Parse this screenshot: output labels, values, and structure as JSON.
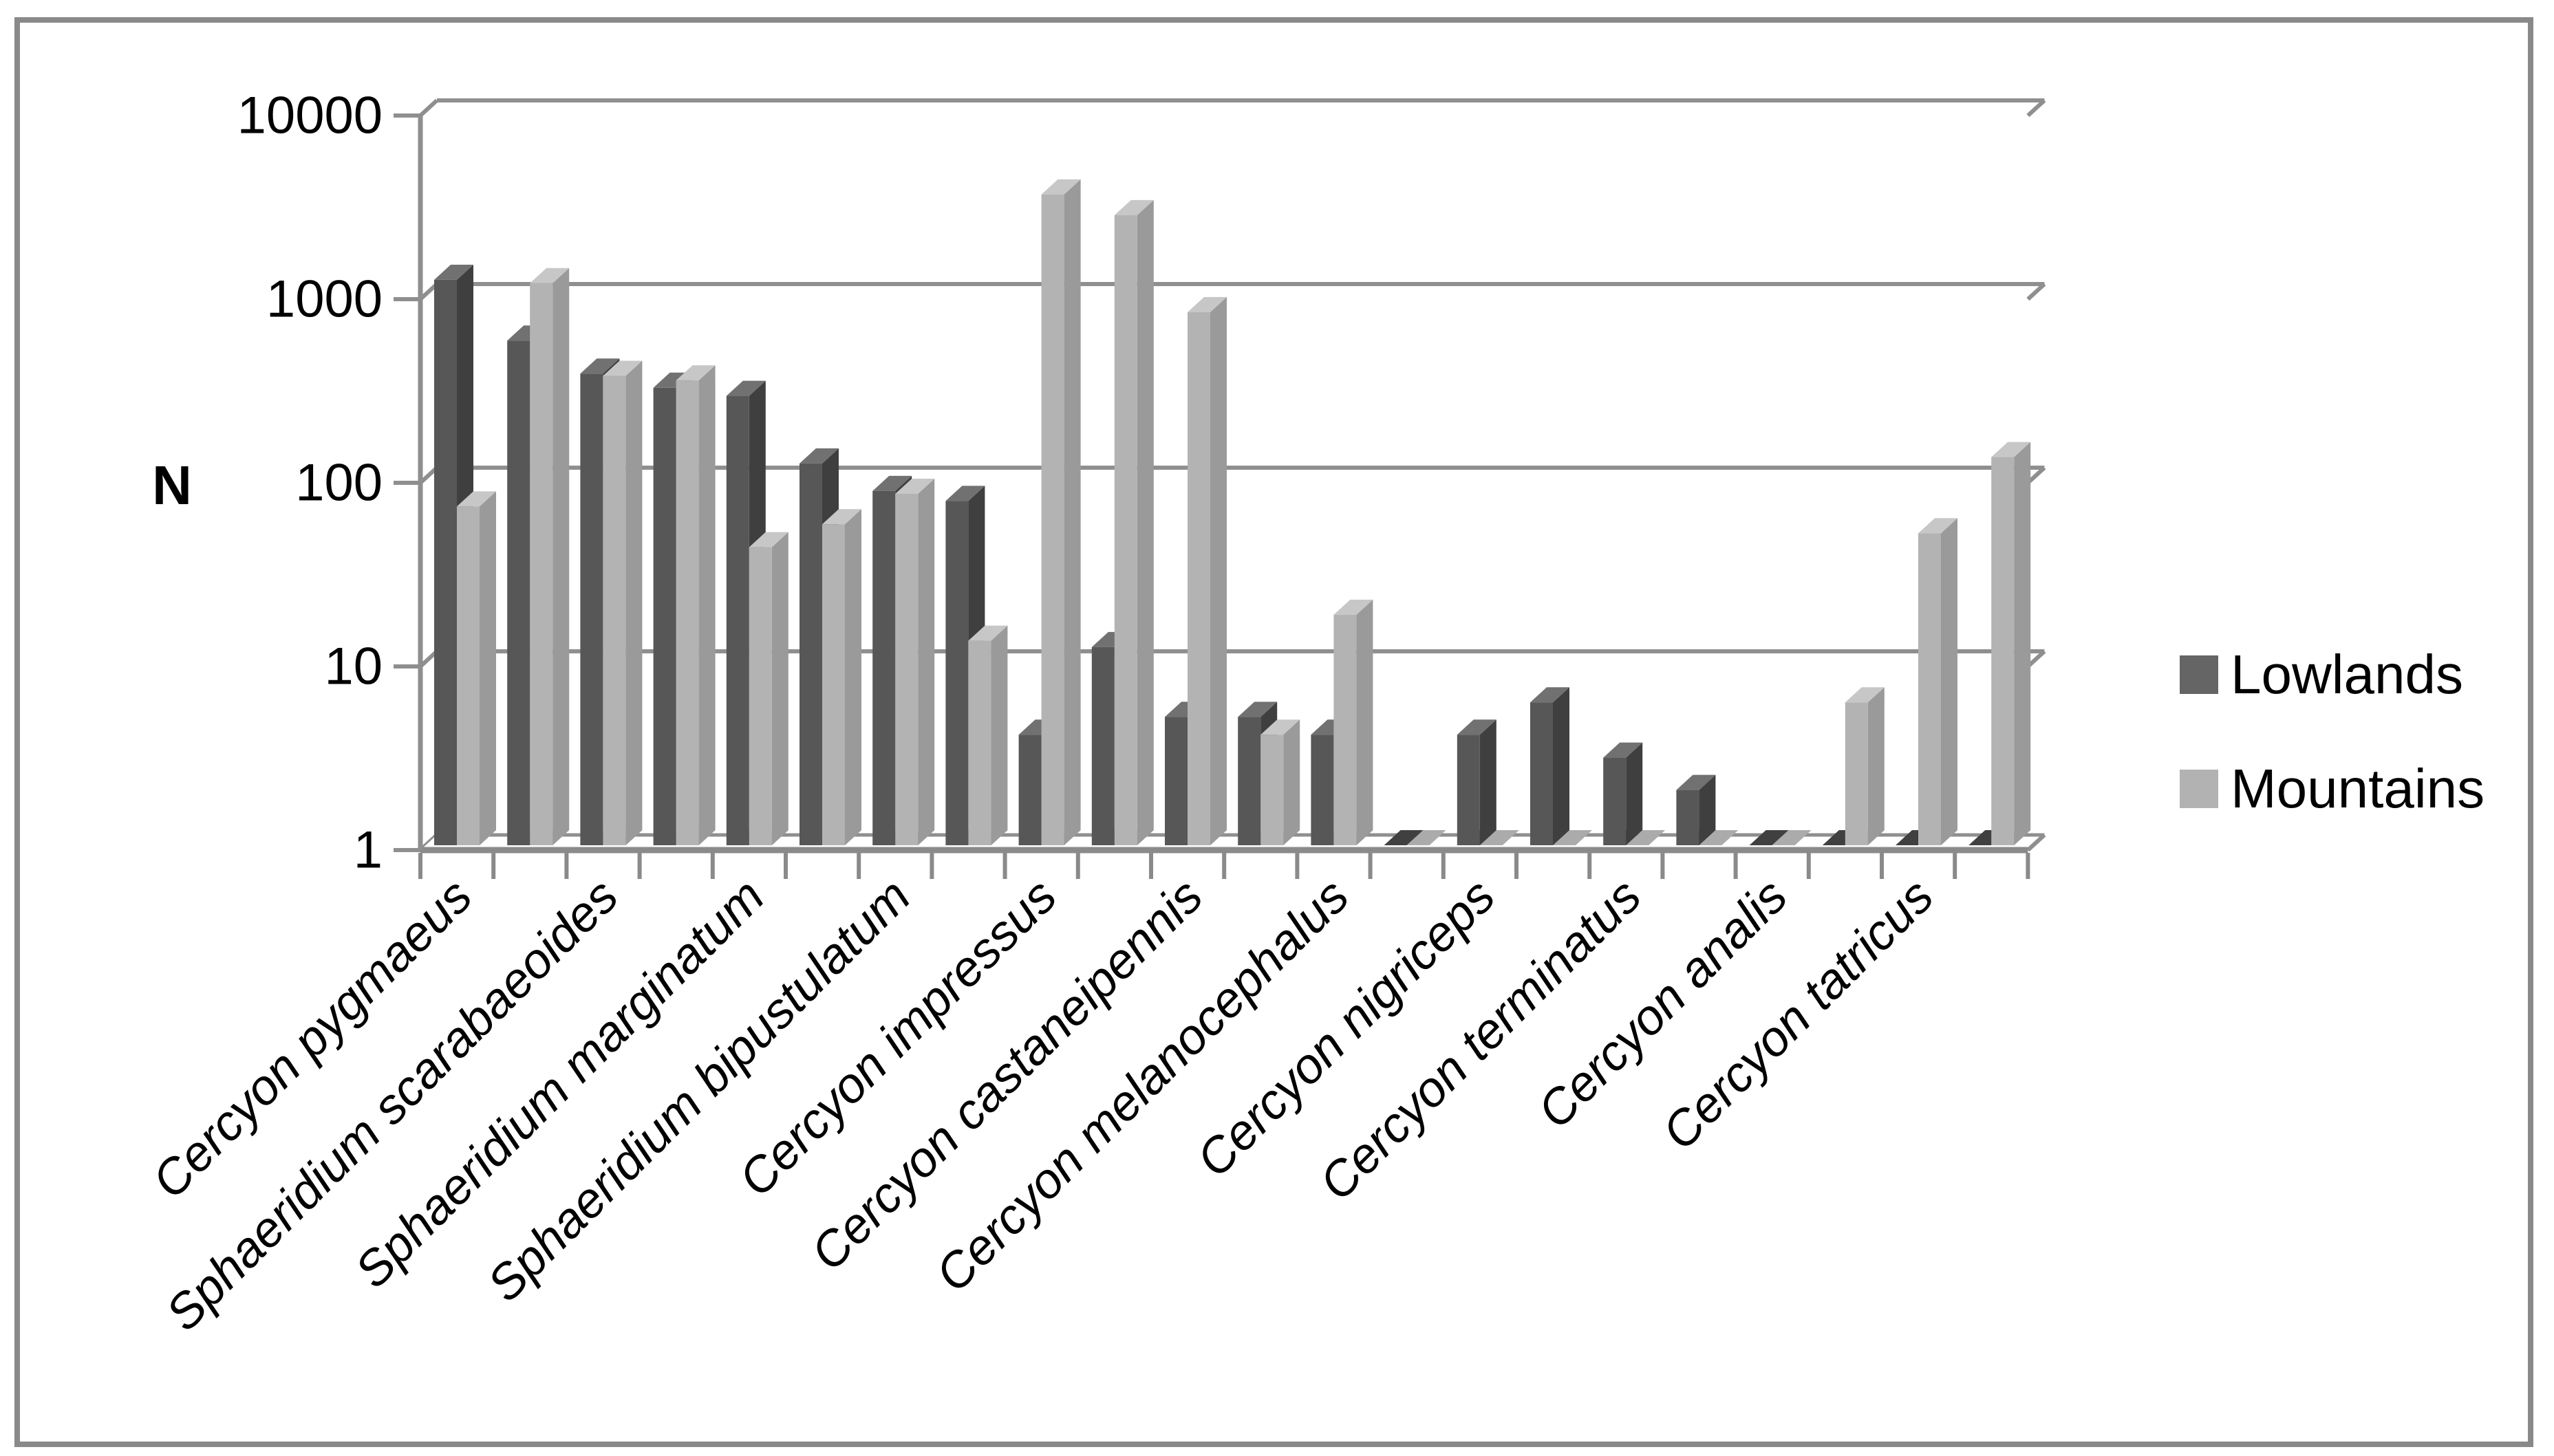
{
  "figure": {
    "background": "#ffffff",
    "border_color": "#898989"
  },
  "legend": {
    "position": "right",
    "items": [
      {
        "label": "Lowlands",
        "color": "#656565"
      },
      {
        "label": "Mountains",
        "color": "#b2b2b2"
      }
    ]
  },
  "colors": {
    "lowlands_front": "#575757",
    "lowlands_top": "#717171",
    "lowlands_side": "#3f3f3f",
    "lowlands_base": "#404040",
    "mountains_front": "#b3b3b3",
    "mountains_top": "#c7c7c7",
    "mountains_side": "#9a9a9a",
    "mountains_base": "#ababab",
    "gridline": "#8f8f8f",
    "axis": "#8f8f8f",
    "floor_line": "#8a8a8a",
    "text": "#000000"
  },
  "chart_data": {
    "type": "bar",
    "title": "",
    "xlabel": "",
    "ylabel": "N",
    "y_scale": "log",
    "ylim": [
      1,
      10000
    ],
    "grid": true,
    "gridline_values": [
      10000,
      1000,
      100,
      10,
      1
    ],
    "y_tick_labels": [
      "10000",
      "1000",
      "100",
      "10",
      "1"
    ],
    "legend_position": "right",
    "style": "3d-clustered-column",
    "categories": [
      "Cercyon pygmaeus",
      "",
      "Sphaeridium scarabaeoides",
      "",
      "Sphaeridium marginatum",
      "",
      "Sphaeridium bipustulatum",
      "",
      "Cercyon impressus",
      "",
      "Cercyon castaneipennis",
      "",
      "Cercyon melanocephalus",
      "",
      "Cercyon nigriceps",
      "",
      "Cercyon terminatus",
      "",
      "Cercyon analis",
      "",
      "Cercyon tatricus",
      ""
    ],
    "series": [
      {
        "name": "Lowlands",
        "values": [
          1200,
          560,
          370,
          310,
          280,
          120,
          85,
          75,
          4,
          12,
          5,
          5,
          4,
          1,
          4,
          6,
          3,
          2,
          1,
          1,
          1,
          1
        ]
      },
      {
        "name": "Mountains",
        "values": [
          70,
          1150,
          360,
          340,
          42,
          56,
          82,
          13,
          3500,
          2700,
          800,
          4,
          18,
          1,
          1,
          1,
          1,
          1,
          1,
          6,
          50,
          130
        ]
      }
    ]
  }
}
